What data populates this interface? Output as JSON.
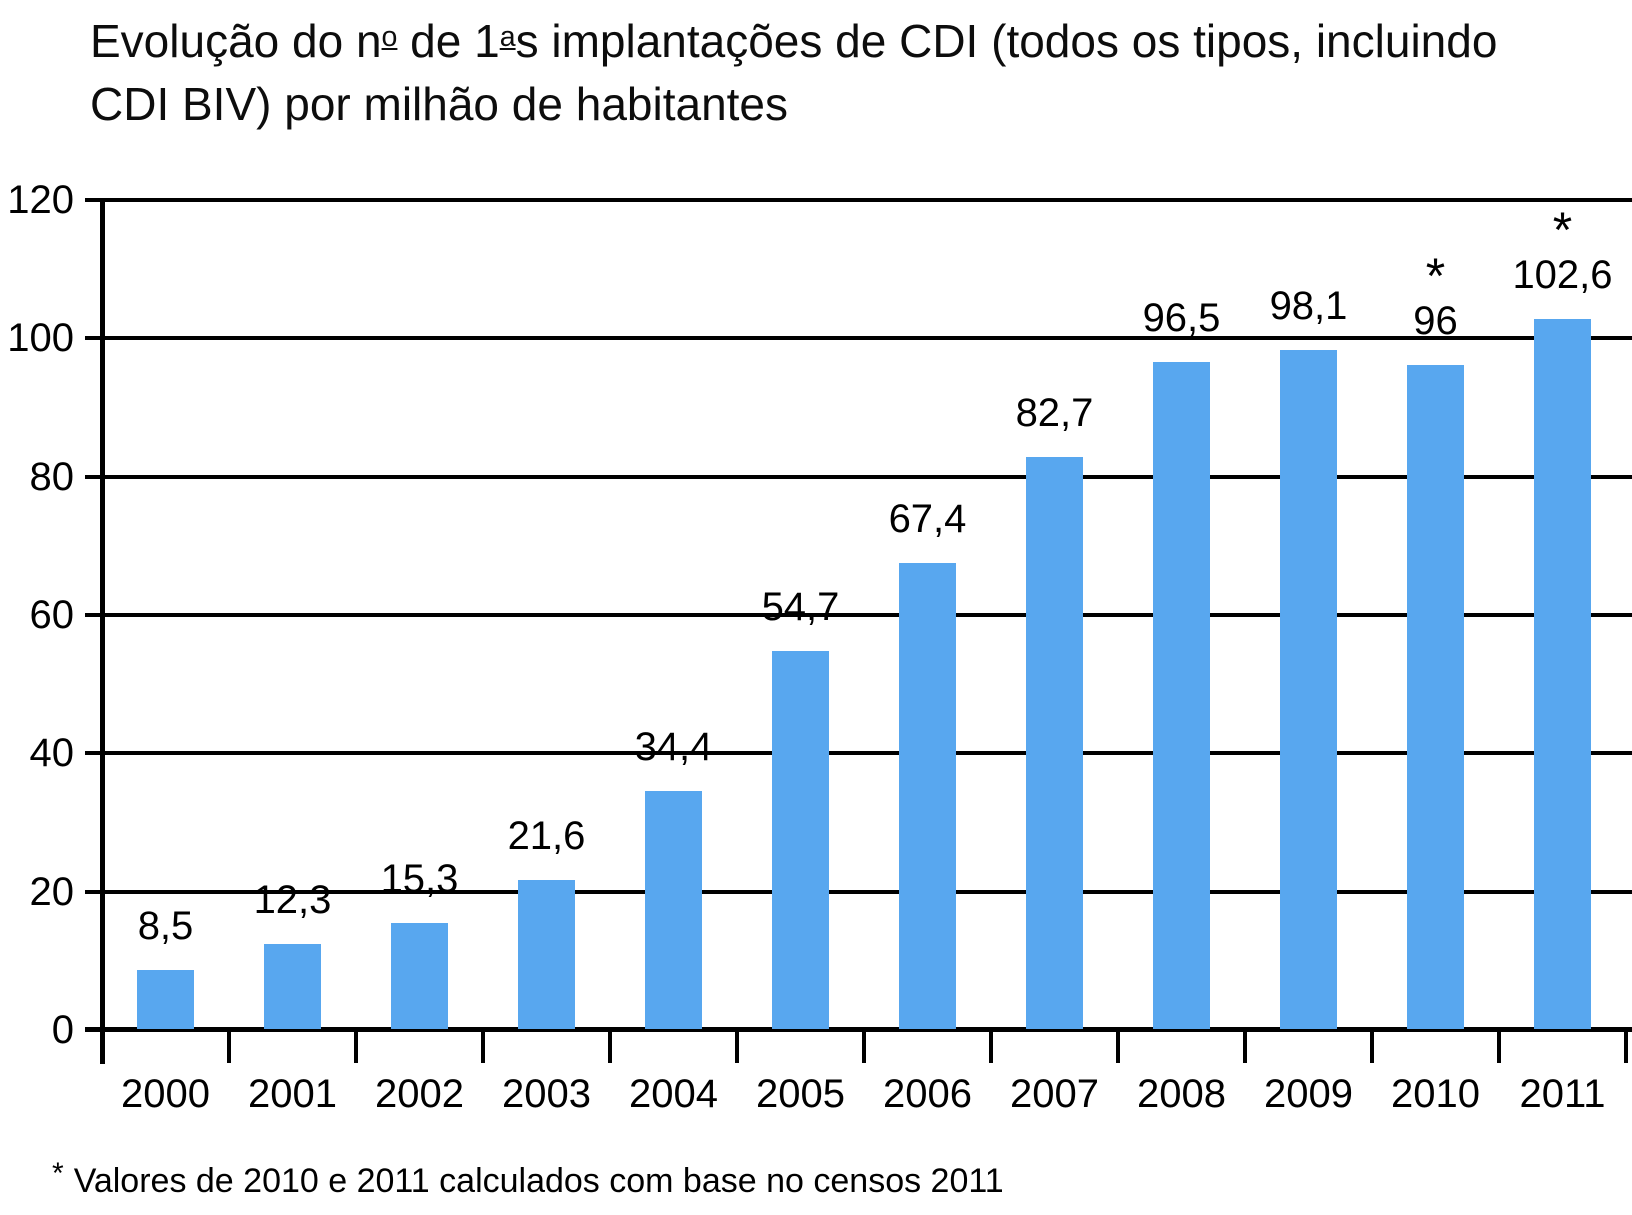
{
  "title_lines": [
    "Evolução do nº de 1ªs implantações de CDI (todos os tipos, incluindo",
    "CDI BIV) por milhão de habitantes"
  ],
  "footnote": {
    "marker": "*",
    "text": "Valores de 2010 e 2011 calculados com base no censos 2011"
  },
  "colors": {
    "bar": "#58A7EF",
    "axis": "#000000",
    "text": "#000000",
    "background": "#FFFFFF"
  },
  "chart_data": {
    "type": "bar",
    "title": "Evolução do nº de 1ªs implantações de CDI (todos os tipos, incluindo CDI BIV) por milhão de habitantes",
    "categories": [
      "2000",
      "2001",
      "2002",
      "2003",
      "2004",
      "2005",
      "2006",
      "2007",
      "2008",
      "2009",
      "2010",
      "2011"
    ],
    "values": [
      8.5,
      12.3,
      15.3,
      21.6,
      34.4,
      54.7,
      67.4,
      82.7,
      96.5,
      98.1,
      96,
      102.6
    ],
    "value_labels": [
      "8,5",
      "12,3",
      "15,3",
      "21,6",
      "34,4",
      "54,7",
      "67,4",
      "82,7",
      "96,5",
      "98,1",
      "96",
      "102,6"
    ],
    "starred_categories": [
      "2010",
      "2011"
    ],
    "star_marker": "*",
    "xlabel": "",
    "ylabel": "",
    "ylim": [
      0,
      120
    ],
    "yticks": [
      0,
      20,
      40,
      60,
      80,
      100,
      120
    ],
    "grid": true,
    "legend": false,
    "footnote": "* Valores de 2010 e 2011 calculados com base no censos 2011"
  }
}
